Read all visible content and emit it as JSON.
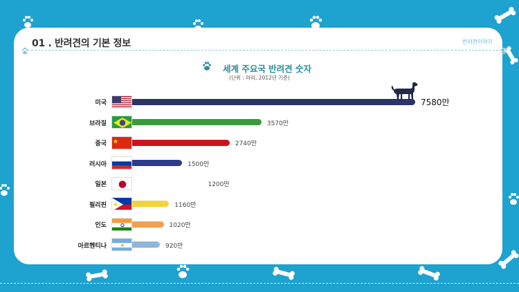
{
  "header": {
    "title": "01 . 반려견의 기본 정보",
    "brand": "반려견이야기"
  },
  "chart_data": {
    "type": "bar",
    "title": "세계 주요국 반려견 숫자",
    "subtitle": "(단위 : 마리, 2012년 기준)",
    "categories": [
      "미국",
      "브라질",
      "중국",
      "러시아",
      "일본",
      "필리핀",
      "인도",
      "아르헨티나"
    ],
    "values": [
      7580,
      3570,
      2740,
      1500,
      1200,
      1160,
      1020,
      920
    ],
    "value_labels": [
      "7580만",
      "3570만",
      "2740만",
      "1500만",
      "1200만",
      "1160만",
      "1020만",
      "920만"
    ],
    "bar_colors": [
      "#2b3462",
      "#3a9a3e",
      "#c8161d",
      "#2e3a8c",
      "#ffffff",
      "#f2d43a",
      "#f0a050",
      "#8fb7dd"
    ],
    "flags": [
      "usa-flag-icon",
      "brazil-flag-icon",
      "china-flag-icon",
      "russia-flag-icon",
      "japan-flag-icon",
      "philippines-flag-icon",
      "india-flag-icon",
      "argentina-flag-icon"
    ],
    "orientation": "horizontal"
  }
}
